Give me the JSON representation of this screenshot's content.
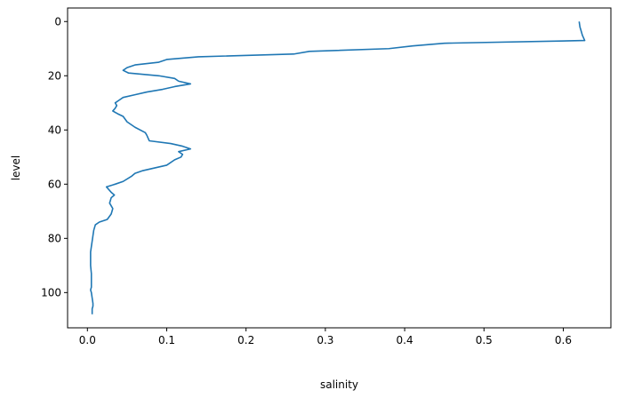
{
  "chart_data": {
    "type": "line",
    "title": "",
    "xlabel": "salinity",
    "ylabel": "level",
    "xlim": [
      -0.025,
      0.66
    ],
    "ylim": [
      113,
      -5
    ],
    "y_inverted": true,
    "grid": false,
    "line_color": "#1f77b4",
    "x_ticks": [
      0.0,
      0.1,
      0.2,
      0.3,
      0.4,
      0.5,
      0.6
    ],
    "x_tick_labels": [
      "0.0",
      "0.1",
      "0.2",
      "0.3",
      "0.4",
      "0.5",
      "0.6"
    ],
    "y_ticks": [
      0,
      20,
      40,
      60,
      80,
      100
    ],
    "y_tick_labels": [
      "0",
      "20",
      "40",
      "60",
      "80",
      "100"
    ],
    "series": [
      {
        "x": [
          0.62,
          0.621,
          0.622,
          0.623,
          0.624,
          0.627,
          0.45,
          0.41,
          0.38,
          0.28,
          0.26,
          0.14,
          0.1,
          0.09,
          0.06,
          0.05,
          0.045,
          0.052,
          0.09,
          0.11,
          0.115,
          0.13,
          0.11,
          0.095,
          0.075,
          0.06,
          0.045,
          0.04,
          0.035,
          0.037,
          0.035,
          0.032,
          0.038,
          0.045,
          0.05,
          0.06,
          0.073,
          0.075,
          0.078,
          0.105,
          0.12,
          0.13,
          0.115,
          0.12,
          0.118,
          0.11,
          0.1,
          0.07,
          0.06,
          0.056,
          0.045,
          0.035,
          0.024,
          0.03,
          0.034,
          0.03,
          0.028,
          0.03,
          0.032,
          0.03,
          0.025,
          0.015,
          0.01,
          0.008,
          0.007,
          0.006,
          0.005,
          0.004,
          0.004,
          0.004,
          0.005,
          0.005,
          0.005,
          0.004,
          0.005,
          0.006,
          0.007,
          0.007,
          0.006,
          0.006
        ],
        "y": [
          0,
          2,
          3,
          4,
          5,
          7,
          8,
          9,
          10,
          11,
          12,
          13,
          14,
          15,
          16,
          17,
          18,
          19,
          20,
          21,
          22,
          23,
          24,
          25,
          26,
          27,
          28,
          29,
          30,
          31,
          32,
          33,
          34,
          35,
          37,
          39,
          41,
          42,
          44,
          45,
          46,
          47,
          48,
          49,
          50,
          51,
          53,
          55,
          56,
          57,
          59,
          60,
          61,
          63,
          64,
          65,
          67,
          68,
          69,
          71,
          73,
          74,
          75,
          77,
          79,
          81,
          83,
          85,
          87,
          90,
          93,
          96,
          98,
          99,
          100,
          102,
          104,
          105,
          106,
          108
        ]
      }
    ]
  }
}
